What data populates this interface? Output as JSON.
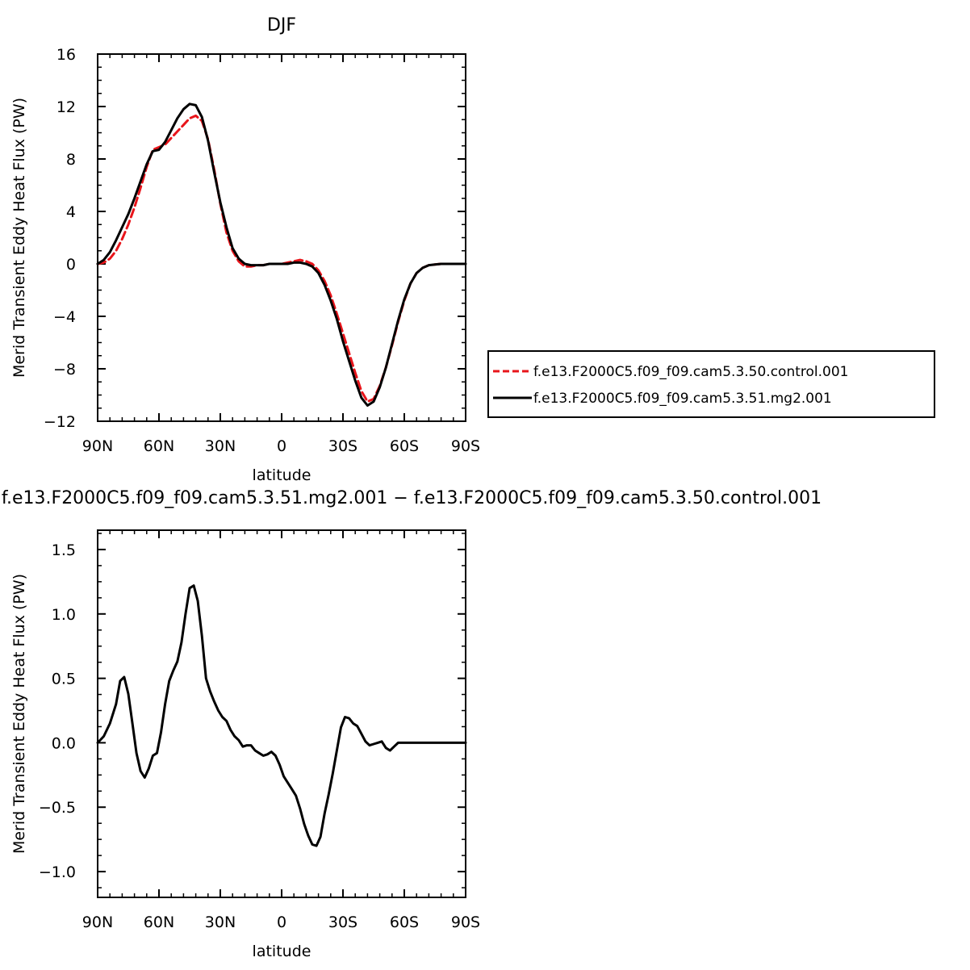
{
  "chart_data": [
    {
      "type": "line",
      "title": "DJF",
      "xlabel": "latitude",
      "ylabel": "Merid Transient Eddy Heat Flux (PW)",
      "xlim": [
        90,
        -90
      ],
      "ylim": [
        -12,
        16
      ],
      "x_ticks": [
        90,
        60,
        30,
        0,
        -30,
        -60,
        -90
      ],
      "x_tick_labels": [
        "90N",
        "60N",
        "30N",
        "0",
        "30S",
        "60S",
        "90S"
      ],
      "y_ticks": [
        -12,
        -8,
        -4,
        0,
        4,
        8,
        12,
        16
      ],
      "y_tick_labels": [
        "−12",
        "−8",
        "−4",
        "0",
        "4",
        "8",
        "12",
        "16"
      ],
      "grid": false,
      "legend_position": "right",
      "series": [
        {
          "name": "f.e13.F2000C5.f09_f09.cam5.3.50.control.001",
          "color": "#e8151b",
          "dash": "dashed",
          "x": [
            90,
            87,
            84,
            81,
            78,
            75,
            72,
            69,
            66,
            63,
            60,
            57,
            54,
            51,
            48,
            45,
            42,
            39,
            36,
            33,
            30,
            27,
            24,
            21,
            18,
            15,
            12,
            9,
            6,
            3,
            0,
            -3,
            -6,
            -9,
            -12,
            -15,
            -18,
            -21,
            -24,
            -27,
            -30,
            -33,
            -36,
            -39,
            -42,
            -45,
            -48,
            -51,
            -54,
            -57,
            -60,
            -63,
            -66,
            -69,
            -72,
            -75,
            -78,
            -81,
            -84,
            -87,
            -90
          ],
          "y": [
            0.0,
            0.1,
            0.4,
            1.0,
            1.9,
            3.0,
            4.3,
            5.8,
            7.4,
            8.7,
            8.9,
            9.1,
            9.6,
            10.1,
            10.6,
            11.1,
            11.3,
            10.9,
            9.5,
            7.2,
            4.6,
            2.4,
            1.0,
            0.2,
            -0.2,
            -0.2,
            -0.1,
            -0.1,
            0.0,
            0.0,
            0.0,
            0.1,
            0.2,
            0.3,
            0.2,
            0.0,
            -0.5,
            -1.3,
            -2.4,
            -3.8,
            -5.3,
            -6.8,
            -8.3,
            -9.7,
            -10.5,
            -10.3,
            -9.3,
            -7.9,
            -6.2,
            -4.4,
            -2.8,
            -1.5,
            -0.7,
            -0.3,
            -0.1,
            -0.05,
            0.0,
            0.0,
            0.0,
            0.0,
            0.0
          ]
        },
        {
          "name": "f.e13.F2000C5.f09_f09.cam5.3.51.mg2.001",
          "color": "#000000",
          "dash": "solid",
          "x": [
            90,
            87,
            84,
            81,
            78,
            75,
            72,
            69,
            66,
            63,
            60,
            57,
            54,
            51,
            48,
            45,
            42,
            39,
            36,
            33,
            30,
            27,
            24,
            21,
            18,
            15,
            12,
            9,
            6,
            3,
            0,
            -3,
            -6,
            -9,
            -12,
            -15,
            -18,
            -21,
            -24,
            -27,
            -30,
            -33,
            -36,
            -39,
            -42,
            -45,
            -48,
            -51,
            -54,
            -57,
            -60,
            -63,
            -66,
            -69,
            -72,
            -75,
            -78,
            -81,
            -84,
            -87,
            -90
          ],
          "y": [
            0.0,
            0.3,
            0.9,
            1.8,
            2.8,
            3.8,
            5.0,
            6.3,
            7.6,
            8.6,
            8.7,
            9.3,
            10.2,
            11.1,
            11.8,
            12.2,
            12.1,
            11.2,
            9.4,
            7.0,
            4.7,
            2.8,
            1.2,
            0.4,
            0.0,
            -0.1,
            -0.1,
            -0.1,
            0.0,
            0.0,
            0.0,
            0.0,
            0.1,
            0.1,
            0.0,
            -0.2,
            -0.7,
            -1.6,
            -2.8,
            -4.2,
            -5.9,
            -7.4,
            -8.9,
            -10.2,
            -10.8,
            -10.5,
            -9.4,
            -7.9,
            -6.1,
            -4.3,
            -2.7,
            -1.5,
            -0.7,
            -0.3,
            -0.1,
            -0.05,
            0.0,
            0.0,
            0.0,
            0.0,
            0.0
          ]
        }
      ]
    },
    {
      "type": "line",
      "title": "f.e13.F2000C5.f09_f09.cam5.3.51.mg2.001 − f.e13.F2000C5.f09_f09.cam5.3.50.control.001",
      "xlabel": "latitude",
      "ylabel": "Merid Transient Eddy Heat Flux (PW)",
      "xlim": [
        90,
        -90
      ],
      "ylim": [
        -1.2,
        1.65
      ],
      "x_ticks": [
        90,
        60,
        30,
        0,
        -30,
        -60,
        -90
      ],
      "x_tick_labels": [
        "90N",
        "60N",
        "30N",
        "0",
        "30S",
        "60S",
        "90S"
      ],
      "y_ticks": [
        -1.0,
        -0.5,
        0.0,
        0.5,
        1.0,
        1.5
      ],
      "y_tick_labels": [
        "−1.0",
        "−0.5",
        "0.0",
        "0.5",
        "1.0",
        "1.5"
      ],
      "grid": false,
      "series": [
        {
          "name": "",
          "color": "#000000",
          "dash": "solid",
          "x": [
            90,
            87,
            84,
            81,
            79,
            77,
            75,
            73,
            71,
            69,
            67,
            65,
            63,
            61,
            59,
            57,
            55,
            53,
            51,
            49,
            47,
            45,
            43,
            41,
            39,
            37,
            35,
            33,
            31,
            29,
            27,
            25,
            23,
            21,
            19,
            17,
            15,
            13,
            11,
            9,
            7,
            5,
            3,
            1,
            -1,
            -3,
            -5,
            -7,
            -9,
            -11,
            -13,
            -15,
            -17,
            -19,
            -21,
            -23,
            -25,
            -27,
            -29,
            -31,
            -33,
            -35,
            -37,
            -39,
            -41,
            -43,
            -45,
            -47,
            -49,
            -51,
            -53,
            -55,
            -57,
            -59,
            -61,
            -63,
            -65,
            -67,
            -69,
            -71,
            -73,
            -75,
            -77,
            -79,
            -81,
            -83,
            -85,
            -87,
            -90
          ],
          "y": [
            0.0,
            0.05,
            0.15,
            0.3,
            0.48,
            0.51,
            0.38,
            0.15,
            -0.08,
            -0.22,
            -0.27,
            -0.2,
            -0.1,
            -0.08,
            0.08,
            0.3,
            0.48,
            0.56,
            0.63,
            0.78,
            1.0,
            1.2,
            1.22,
            1.1,
            0.83,
            0.5,
            0.4,
            0.32,
            0.25,
            0.2,
            0.17,
            0.1,
            0.05,
            0.02,
            -0.03,
            -0.02,
            -0.02,
            -0.06,
            -0.08,
            -0.1,
            -0.09,
            -0.07,
            -0.1,
            -0.17,
            -0.26,
            -0.31,
            -0.36,
            -0.41,
            -0.51,
            -0.63,
            -0.72,
            -0.79,
            -0.8,
            -0.73,
            -0.55,
            -0.4,
            -0.24,
            -0.06,
            0.12,
            0.2,
            0.19,
            0.15,
            0.13,
            0.07,
            0.01,
            -0.02,
            -0.01,
            0.0,
            0.01,
            -0.04,
            -0.06,
            -0.03,
            0.0,
            0.0,
            0.0,
            0.0,
            0.0,
            0.0,
            0.0,
            0.0,
            0.0,
            0.0,
            0.0,
            0.0,
            0.0,
            0.0,
            0.0,
            0.0,
            0.0
          ]
        }
      ]
    }
  ]
}
